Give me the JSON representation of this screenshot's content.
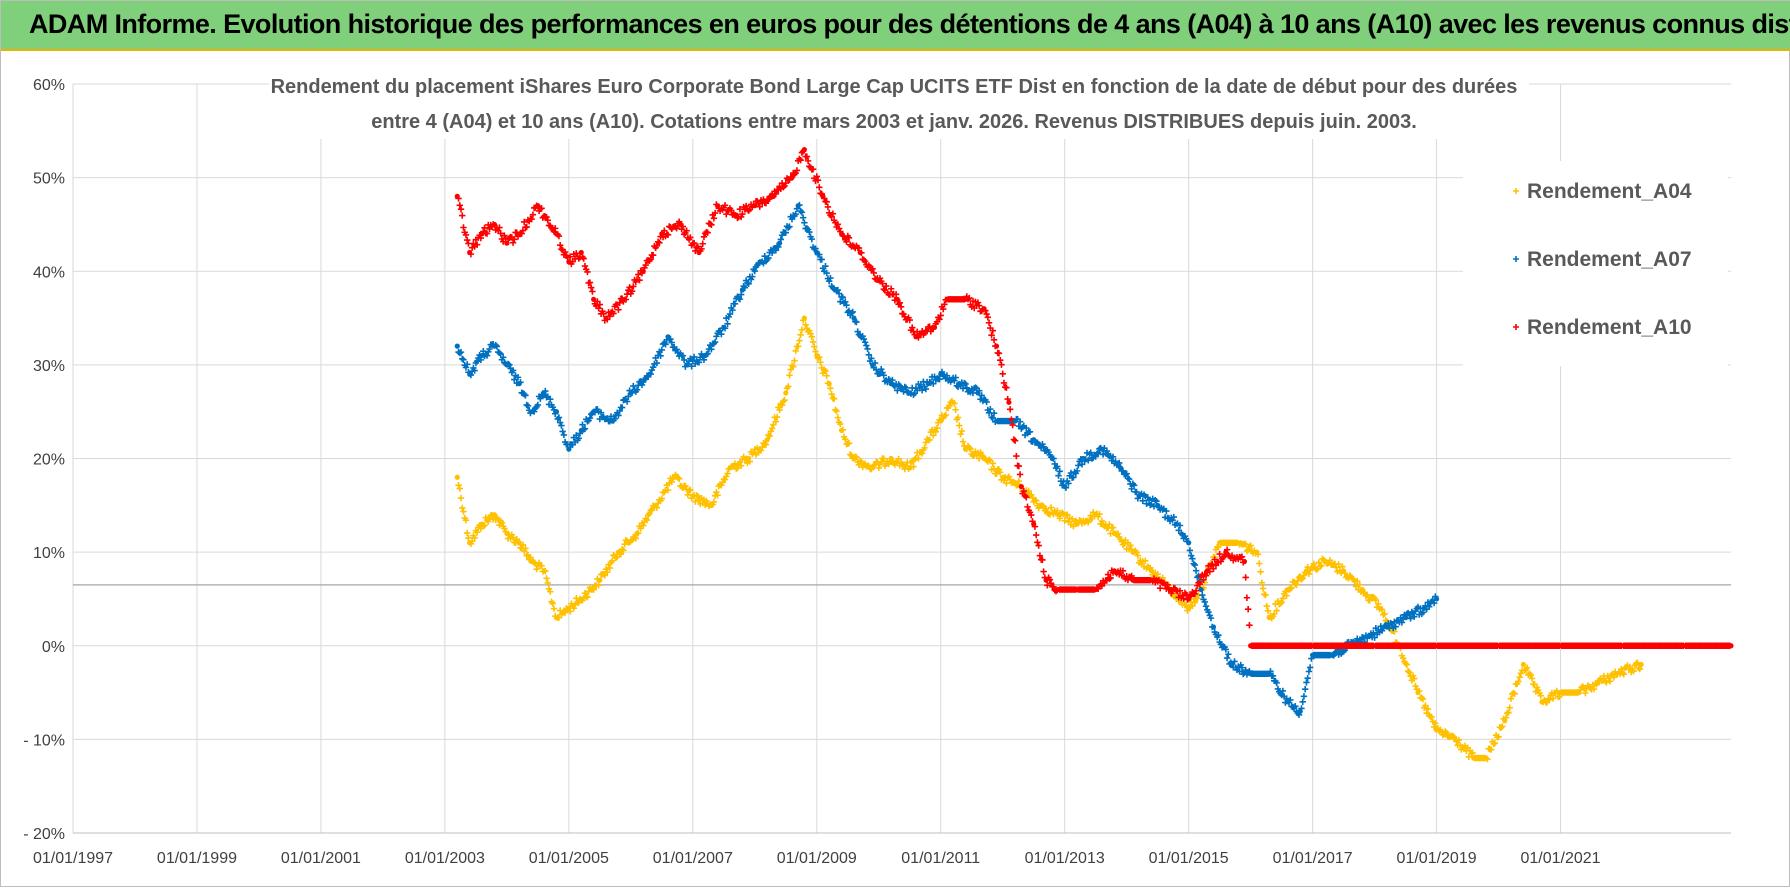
{
  "banner": {
    "title": "ADAM Informe. Evolution historique des performances en euros pour des détentions de 4 ans (A04) à 10 ans (A10) avec les revenus connus distribués"
  },
  "chart_data": {
    "type": "scatter",
    "title_line1": "Rendement du placement iShares Euro Corporate Bond Large Cap UCITS ETF Dist en fonction de la date de début pour des durées",
    "title_line2": "entre 4 (A04) et 10 ans (A10).  Cotations entre mars 2003 et janv. 2026. Revenus DISTRIBUES depuis juin. 2003.",
    "xlabel": "",
    "ylabel": "",
    "xlim": [
      1997.0,
      2023.75
    ],
    "ylim": [
      -20,
      60
    ],
    "x_ticks": [
      1997,
      1999,
      2001,
      2003,
      2005,
      2007,
      2009,
      2011,
      2013,
      2015,
      2017,
      2019,
      2021
    ],
    "x_tick_labels": [
      "01/01/1997",
      "01/01/1999",
      "01/01/2001",
      "01/01/2003",
      "01/01/2005",
      "01/01/2007",
      "01/01/2009",
      "01/01/2011",
      "01/01/2013",
      "01/01/2015",
      "01/01/2017",
      "01/01/2019",
      "01/01/2021"
    ],
    "y_ticks": [
      -20,
      -10,
      0,
      10,
      20,
      30,
      40,
      50,
      60
    ],
    "y_tick_labels": [
      "- 20%",
      "- 10%",
      "0%",
      "10%",
      "20%",
      "30%",
      "40%",
      "50%",
      "60%"
    ],
    "reference_line_y": 6.5,
    "legend_position": "top-right",
    "series": [
      {
        "name": "Rendement_A04",
        "color": "#ffc000",
        "points": [
          [
            2003.2,
            18
          ],
          [
            2003.4,
            11
          ],
          [
            2003.6,
            13
          ],
          [
            2003.8,
            14
          ],
          [
            2004.0,
            12
          ],
          [
            2004.2,
            11
          ],
          [
            2004.4,
            9
          ],
          [
            2004.6,
            8
          ],
          [
            2004.8,
            3
          ],
          [
            2005.0,
            4
          ],
          [
            2005.2,
            5
          ],
          [
            2005.5,
            7
          ],
          [
            2005.8,
            10
          ],
          [
            2006.1,
            12
          ],
          [
            2006.4,
            15
          ],
          [
            2006.7,
            18
          ],
          [
            2007.0,
            16
          ],
          [
            2007.3,
            15
          ],
          [
            2007.6,
            19
          ],
          [
            2007.9,
            20
          ],
          [
            2008.2,
            22
          ],
          [
            2008.5,
            27
          ],
          [
            2008.8,
            35
          ],
          [
            2009.0,
            31
          ],
          [
            2009.2,
            28
          ],
          [
            2009.4,
            23
          ],
          [
            2009.6,
            20
          ],
          [
            2009.9,
            19
          ],
          [
            2010.2,
            20
          ],
          [
            2010.5,
            19
          ],
          [
            2010.8,
            22
          ],
          [
            2011.0,
            24
          ],
          [
            2011.2,
            26
          ],
          [
            2011.4,
            21
          ],
          [
            2011.7,
            20
          ],
          [
            2012.0,
            18
          ],
          [
            2012.3,
            17
          ],
          [
            2012.6,
            15
          ],
          [
            2012.9,
            14
          ],
          [
            2013.2,
            13
          ],
          [
            2013.5,
            14
          ],
          [
            2013.8,
            12
          ],
          [
            2014.1,
            10
          ],
          [
            2014.4,
            8
          ],
          [
            2014.7,
            6
          ],
          [
            2015.0,
            4
          ],
          [
            2015.2,
            6
          ],
          [
            2015.5,
            11
          ],
          [
            2015.8,
            11
          ],
          [
            2016.1,
            10
          ],
          [
            2016.3,
            3
          ],
          [
            2016.6,
            6
          ],
          [
            2016.9,
            8
          ],
          [
            2017.2,
            9
          ],
          [
            2017.5,
            8
          ],
          [
            2017.8,
            6
          ],
          [
            2018.1,
            4
          ],
          [
            2018.4,
            0
          ],
          [
            2018.7,
            -5
          ],
          [
            2019.0,
            -9
          ],
          [
            2019.3,
            -10
          ],
          [
            2019.6,
            -12
          ],
          [
            2019.8,
            -12
          ],
          [
            2020.1,
            -8
          ],
          [
            2020.4,
            -2
          ],
          [
            2020.7,
            -6
          ],
          [
            2021.0,
            -5
          ],
          [
            2021.3,
            -5
          ],
          [
            2021.6,
            -4
          ],
          [
            2021.9,
            -3
          ],
          [
            2022.3,
            -2
          ]
        ]
      },
      {
        "name": "Rendement_A07",
        "color": "#0070c0",
        "points": [
          [
            2003.2,
            32
          ],
          [
            2003.4,
            29
          ],
          [
            2003.6,
            31
          ],
          [
            2003.8,
            32
          ],
          [
            2004.0,
            30
          ],
          [
            2004.2,
            28
          ],
          [
            2004.4,
            25
          ],
          [
            2004.6,
            27
          ],
          [
            2004.8,
            25
          ],
          [
            2005.0,
            21
          ],
          [
            2005.2,
            23
          ],
          [
            2005.4,
            25
          ],
          [
            2005.7,
            24
          ],
          [
            2006.0,
            27
          ],
          [
            2006.3,
            29
          ],
          [
            2006.6,
            33
          ],
          [
            2006.9,
            30
          ],
          [
            2007.2,
            31
          ],
          [
            2007.5,
            34
          ],
          [
            2007.8,
            38
          ],
          [
            2008.1,
            41
          ],
          [
            2008.4,
            43
          ],
          [
            2008.7,
            47
          ],
          [
            2009.0,
            42
          ],
          [
            2009.3,
            38
          ],
          [
            2009.6,
            35
          ],
          [
            2009.9,
            30
          ],
          [
            2010.2,
            28
          ],
          [
            2010.5,
            27
          ],
          [
            2010.8,
            28
          ],
          [
            2011.0,
            29
          ],
          [
            2011.3,
            28
          ],
          [
            2011.6,
            27
          ],
          [
            2011.9,
            24
          ],
          [
            2012.2,
            24
          ],
          [
            2012.5,
            22
          ],
          [
            2012.8,
            20
          ],
          [
            2013.0,
            17
          ],
          [
            2013.3,
            20
          ],
          [
            2013.6,
            21
          ],
          [
            2013.9,
            19
          ],
          [
            2014.2,
            16
          ],
          [
            2014.5,
            15
          ],
          [
            2014.8,
            13
          ],
          [
            2015.0,
            11
          ],
          [
            2015.2,
            6
          ],
          [
            2015.4,
            2
          ],
          [
            2015.7,
            -2
          ],
          [
            2016.0,
            -3
          ],
          [
            2016.3,
            -3
          ],
          [
            2016.6,
            -6
          ],
          [
            2016.8,
            -7
          ],
          [
            2017.0,
            -1
          ],
          [
            2017.3,
            -1
          ],
          [
            2017.6,
            0
          ],
          [
            2017.9,
            1
          ],
          [
            2018.2,
            2
          ],
          [
            2018.5,
            3
          ],
          [
            2018.8,
            4
          ],
          [
            2019.0,
            5
          ]
        ]
      },
      {
        "name": "Rendement_A10",
        "color": "#ff0000",
        "points": [
          [
            2003.2,
            48
          ],
          [
            2003.4,
            42
          ],
          [
            2003.6,
            44
          ],
          [
            2003.8,
            45
          ],
          [
            2004.0,
            43
          ],
          [
            2004.2,
            44
          ],
          [
            2004.5,
            47
          ],
          [
            2004.8,
            44
          ],
          [
            2005.0,
            41
          ],
          [
            2005.2,
            42
          ],
          [
            2005.4,
            37
          ],
          [
            2005.6,
            35
          ],
          [
            2005.9,
            37
          ],
          [
            2006.2,
            40
          ],
          [
            2006.5,
            44
          ],
          [
            2006.8,
            45
          ],
          [
            2007.1,
            42
          ],
          [
            2007.4,
            47
          ],
          [
            2007.7,
            46
          ],
          [
            2008.0,
            47
          ],
          [
            2008.3,
            48
          ],
          [
            2008.6,
            50
          ],
          [
            2008.8,
            53
          ],
          [
            2009.1,
            48
          ],
          [
            2009.4,
            44
          ],
          [
            2009.7,
            42
          ],
          [
            2010.0,
            39
          ],
          [
            2010.3,
            37
          ],
          [
            2010.6,
            33
          ],
          [
            2010.9,
            34
          ],
          [
            2011.1,
            37
          ],
          [
            2011.4,
            37
          ],
          [
            2011.7,
            36
          ],
          [
            2011.9,
            32
          ],
          [
            2012.1,
            26
          ],
          [
            2012.3,
            17
          ],
          [
            2012.5,
            13
          ],
          [
            2012.7,
            7
          ],
          [
            2012.9,
            6
          ],
          [
            2013.2,
            6
          ],
          [
            2013.5,
            6
          ],
          [
            2013.8,
            8
          ],
          [
            2014.1,
            7
          ],
          [
            2014.4,
            7
          ],
          [
            2014.7,
            6
          ],
          [
            2015.0,
            5
          ],
          [
            2015.3,
            8
          ],
          [
            2015.6,
            10
          ],
          [
            2015.9,
            9
          ],
          [
            2016.0,
            0
          ],
          [
            2017.0,
            0
          ],
          [
            2018.0,
            0
          ],
          [
            2019.0,
            0
          ],
          [
            2020.0,
            0
          ],
          [
            2021.0,
            0
          ],
          [
            2022.0,
            0
          ],
          [
            2023.0,
            0
          ],
          [
            2023.75,
            0
          ]
        ]
      }
    ]
  }
}
